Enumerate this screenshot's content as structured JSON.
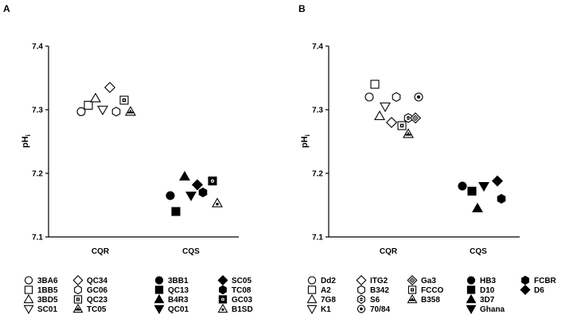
{
  "chart_data": [
    {
      "panel": "A",
      "type": "scatter",
      "ylabel": "pH",
      "ylabel_sub": "i",
      "ylim": [
        7.1,
        7.4
      ],
      "yticks": [
        "7.4",
        "7.3",
        "7.2",
        "7.1"
      ],
      "categories": [
        "CQR",
        "CQS"
      ],
      "series": [
        {
          "name": "3BA6",
          "marker": "circle-open",
          "x": "CQR",
          "y": 7.297
        },
        {
          "name": "1BB5",
          "marker": "square-open",
          "x": "CQR",
          "y": 7.307
        },
        {
          "name": "3BD5",
          "marker": "triangle-open",
          "x": "CQR",
          "y": 7.318
        },
        {
          "name": "SC01",
          "marker": "triangle-down-open",
          "x": "CQR",
          "y": 7.3
        },
        {
          "name": "QC34",
          "marker": "diamond-open",
          "x": "CQR",
          "y": 7.335
        },
        {
          "name": "GC06",
          "marker": "hexagon-open",
          "x": "CQR",
          "y": 7.297
        },
        {
          "name": "QC23",
          "marker": "square-dot",
          "x": "CQR",
          "y": 7.315
        },
        {
          "name": "TC05",
          "marker": "triangle-stripe",
          "x": "CQR",
          "y": 7.297
        },
        {
          "name": "3BB1",
          "marker": "circle-filled",
          "x": "CQS",
          "y": 7.165
        },
        {
          "name": "QC13",
          "marker": "square-filled",
          "x": "CQS",
          "y": 7.14
        },
        {
          "name": "B4R3",
          "marker": "triangle-filled",
          "x": "CQS",
          "y": 7.195
        },
        {
          "name": "QC01",
          "marker": "triangle-down-filled",
          "x": "CQS",
          "y": 7.165
        },
        {
          "name": "SC05",
          "marker": "diamond-filled",
          "x": "CQS",
          "y": 7.182
        },
        {
          "name": "TC08",
          "marker": "hexagon-filled",
          "x": "CQS",
          "y": 7.17
        },
        {
          "name": "GC03",
          "marker": "square-filled-dot",
          "x": "CQS",
          "y": 7.188
        },
        {
          "name": "B1SD",
          "marker": "triangle-dot",
          "x": "CQS",
          "y": 7.153
        }
      ],
      "legend": [
        [
          "3BA6",
          "1BB5",
          "3BD5",
          "SC01"
        ],
        [
          "QC34",
          "GC06",
          "QC23",
          "TC05"
        ],
        [
          "3BB1",
          "QC13",
          "B4R3",
          "QC01"
        ],
        [
          "SC05",
          "TC08",
          "GC03",
          "B1SD"
        ]
      ],
      "legend_placement": "bottom"
    },
    {
      "panel": "B",
      "type": "scatter",
      "ylabel": "pH",
      "ylabel_sub": "i",
      "ylim": [
        7.1,
        7.4
      ],
      "yticks": [
        "7.4",
        "7.3",
        "7.2",
        "7.1"
      ],
      "categories": [
        "CQR",
        "CQS"
      ],
      "series": [
        {
          "name": "Dd2",
          "marker": "circle-open",
          "x": "CQR",
          "y": 7.32
        },
        {
          "name": "A2",
          "marker": "square-open",
          "x": "CQR",
          "y": 7.34
        },
        {
          "name": "7G8",
          "marker": "triangle-open",
          "x": "CQR",
          "y": 7.29
        },
        {
          "name": "K1",
          "marker": "triangle-down-open",
          "x": "CQR",
          "y": 7.305
        },
        {
          "name": "ITG2",
          "marker": "diamond-open",
          "x": "CQR",
          "y": 7.28
        },
        {
          "name": "B342",
          "marker": "hexagon-open",
          "x": "CQR",
          "y": 7.32
        },
        {
          "name": "S6",
          "marker": "hexagon-dot",
          "x": "CQR",
          "y": 7.287
        },
        {
          "name": "70/84",
          "marker": "circle-dot",
          "x": "CQR",
          "y": 7.32
        },
        {
          "name": "Ga3",
          "marker": "diamond-dot",
          "x": "CQR",
          "y": 7.287
        },
        {
          "name": "FCCO",
          "marker": "square-dot",
          "x": "CQR",
          "y": 7.275
        },
        {
          "name": "B358",
          "marker": "triangle-stripe",
          "x": "CQR",
          "y": 7.262
        },
        {
          "name": "HB3",
          "marker": "circle-filled",
          "x": "CQS",
          "y": 7.18
        },
        {
          "name": "D10",
          "marker": "square-filled",
          "x": "CQS",
          "y": 7.172
        },
        {
          "name": "3D7",
          "marker": "triangle-filled",
          "x": "CQS",
          "y": 7.145
        },
        {
          "name": "Ghana",
          "marker": "triangle-down-filled",
          "x": "CQS",
          "y": 7.18
        },
        {
          "name": "FCBR",
          "marker": "hexagon-filled",
          "x": "CQS",
          "y": 7.16
        },
        {
          "name": "D6",
          "marker": "diamond-filled",
          "x": "CQS",
          "y": 7.188
        }
      ],
      "legend": [
        [
          "Dd2",
          "A2",
          "7G8",
          "K1"
        ],
        [
          "ITG2",
          "B342",
          "S6",
          "70/84"
        ],
        [
          "Ga3",
          "FCCO",
          "B358"
        ],
        [
          "HB3",
          "D10",
          "3D7",
          "Ghana"
        ],
        [
          "FCBR",
          "D6"
        ]
      ],
      "legend_placement": "bottom"
    }
  ]
}
